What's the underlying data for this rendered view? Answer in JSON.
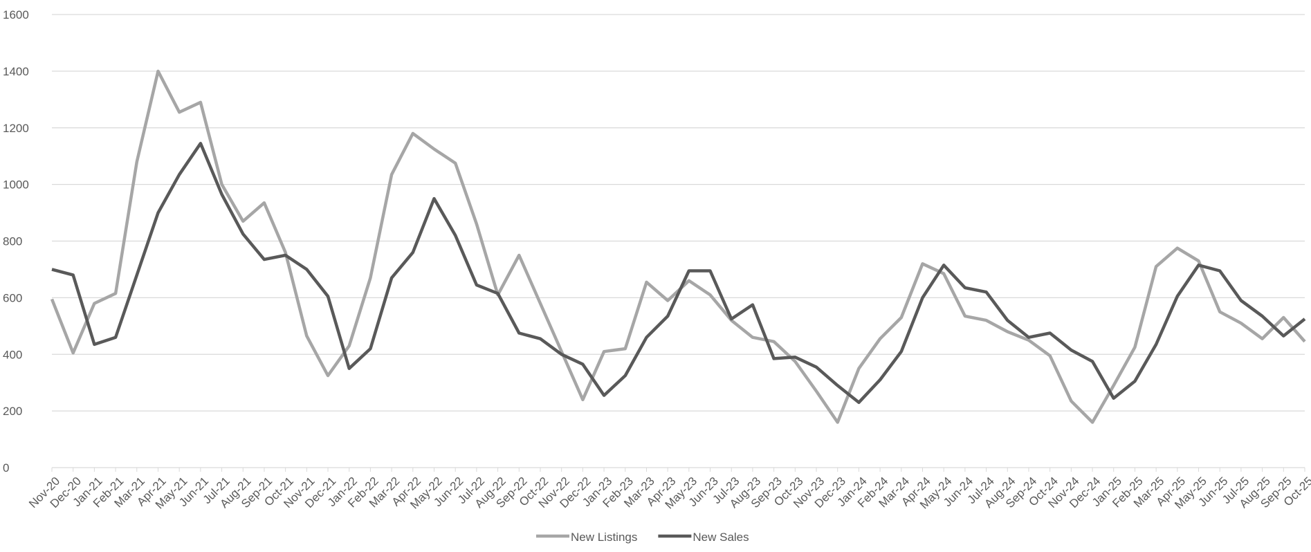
{
  "chart_data": {
    "type": "line",
    "categories": [
      "Nov-20",
      "Dec-20",
      "Jan-21",
      "Feb-21",
      "Mar-21",
      "Apr-21",
      "May-21",
      "Jun-21",
      "Jul-21",
      "Aug-21",
      "Sep-21",
      "Oct-21",
      "Nov-21",
      "Dec-21",
      "Jan-22",
      "Feb-22",
      "Mar-22",
      "Apr-22",
      "May-22",
      "Jun-22",
      "Jul-22",
      "Aug-22",
      "Sep-22",
      "Oct-22",
      "Nov-22",
      "Dec-22",
      "Jan-23",
      "Feb-23",
      "Mar-23",
      "Apr-23",
      "May-23",
      "Jun-23",
      "Jul-23",
      "Aug-23",
      "Sep-23",
      "Oct-23",
      "Nov-23",
      "Dec-23",
      "Jan-24",
      "Feb-24",
      "Mar-24",
      "Apr-24",
      "May-24",
      "Jun-24",
      "Jul-24",
      "Aug-24",
      "Sep-24",
      "Oct-24",
      "Nov-24",
      "Dec-24",
      "Jan-25",
      "Feb-25",
      "Mar-25",
      "Apr-25",
      "May-25",
      "Jun-25",
      "Jul-25",
      "Aug-25",
      "Sep-25",
      "Oct-25"
    ],
    "series": [
      {
        "name": "New Listings",
        "color": "#a6a6a6",
        "values": [
          595,
          405,
          580,
          615,
          1080,
          1400,
          1255,
          1290,
          1000,
          870,
          935,
          760,
          465,
          325,
          430,
          670,
          1035,
          1180,
          1125,
          1075,
          860,
          610,
          750,
          580,
          410,
          240,
          410,
          420,
          655,
          590,
          660,
          610,
          520,
          460,
          445,
          375,
          270,
          160,
          350,
          455,
          530,
          720,
          685,
          535,
          520,
          480,
          450,
          395,
          235,
          160,
          290,
          425,
          710,
          775,
          730,
          550,
          510,
          455,
          530,
          445
        ]
      },
      {
        "name": "New Sales",
        "color": "#595959",
        "values": [
          700,
          680,
          435,
          460,
          680,
          900,
          1035,
          1145,
          965,
          825,
          735,
          750,
          700,
          605,
          350,
          420,
          670,
          760,
          950,
          820,
          645,
          615,
          475,
          455,
          400,
          365,
          255,
          325,
          460,
          535,
          695,
          695,
          525,
          575,
          385,
          390,
          355,
          290,
          230,
          310,
          410,
          600,
          715,
          635,
          620,
          520,
          460,
          475,
          415,
          375,
          245,
          305,
          435,
          605,
          715,
          695,
          590,
          535,
          465,
          525
        ]
      }
    ],
    "ylim": [
      0,
      1600
    ],
    "yticks": [
      0,
      200,
      400,
      600,
      800,
      1000,
      1200,
      1400,
      1600
    ],
    "grid": true,
    "legend": "bottom"
  }
}
